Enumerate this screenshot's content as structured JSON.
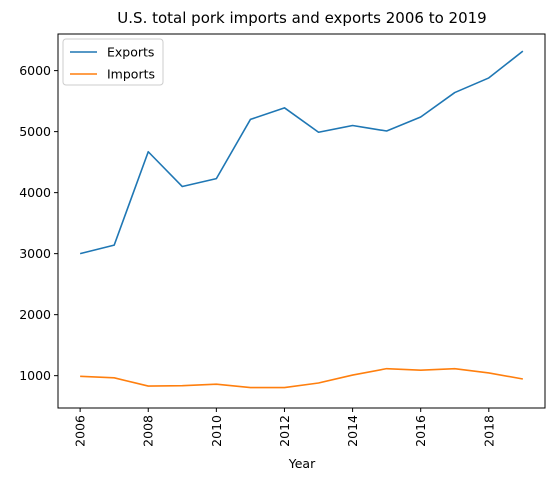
{
  "chart_data": {
    "type": "line",
    "title": "U.S. total pork imports and exports 2006 to 2019",
    "xlabel": "Year",
    "ylabel": "",
    "x": [
      2006,
      2007,
      2008,
      2009,
      2010,
      2011,
      2012,
      2013,
      2014,
      2015,
      2016,
      2017,
      2018,
      2019
    ],
    "xticks": [
      "2006",
      "2008",
      "2010",
      "2012",
      "2014",
      "2016",
      "2018"
    ],
    "yticks": [
      "1000",
      "2000",
      "3000",
      "4000",
      "5000",
      "6000"
    ],
    "xlim": [
      2005.35,
      2019.65
    ],
    "ylim": [
      470,
      6600
    ],
    "grid": false,
    "legend_position": "top-left",
    "series": [
      {
        "name": "Exports",
        "color": "#1f77b4",
        "values": [
          3000,
          3140,
          4670,
          4100,
          4230,
          5200,
          5390,
          4990,
          5100,
          5010,
          5240,
          5640,
          5880,
          6320
        ]
      },
      {
        "name": "Imports",
        "color": "#ff7f0e",
        "values": [
          990,
          965,
          830,
          835,
          860,
          805,
          805,
          880,
          1010,
          1115,
          1090,
          1115,
          1045,
          945
        ]
      }
    ]
  }
}
